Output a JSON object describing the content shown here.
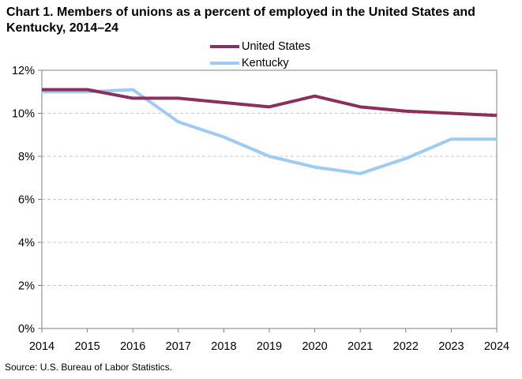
{
  "title": "Chart 1. Members of unions as a percent of employed  in the United States and Kentucky, 2014–24",
  "source": "Source: U.S. Bureau of Labor Statistics.",
  "chart_data": {
    "type": "line",
    "title": "Chart 1. Members of unions as a percent of employed  in the United States and Kentucky, 2014–24",
    "xlabel": "",
    "ylabel": "",
    "x": [
      2014,
      2015,
      2016,
      2017,
      2018,
      2019,
      2020,
      2021,
      2022,
      2023,
      2024
    ],
    "x_tick_labels": [
      "2014",
      "2015",
      "2016",
      "2017",
      "2018",
      "2019",
      "2020",
      "2021",
      "2022",
      "2023",
      "2024"
    ],
    "ylim": [
      0,
      12
    ],
    "y_ticks": [
      0,
      2,
      4,
      6,
      8,
      10,
      12
    ],
    "y_tick_labels": [
      "0%",
      "2%",
      "4%",
      "6%",
      "8%",
      "10%",
      "12%"
    ],
    "grid": "horizontal dashed",
    "legend_position": "top-center",
    "series": [
      {
        "name": "United States",
        "color": "#8b2f5d",
        "values": [
          11.1,
          11.1,
          10.7,
          10.7,
          10.5,
          10.3,
          10.8,
          10.3,
          10.1,
          10.0,
          9.9
        ]
      },
      {
        "name": "Kentucky",
        "color": "#9ecbf3",
        "values": [
          11.0,
          11.0,
          11.1,
          9.6,
          8.9,
          8.0,
          7.5,
          7.2,
          7.9,
          8.8,
          8.8
        ]
      }
    ]
  }
}
